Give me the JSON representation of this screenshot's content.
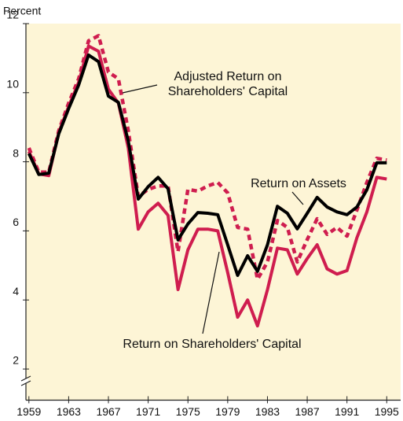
{
  "chart_data": {
    "type": "line",
    "y_label": "Percent",
    "x": [
      1959,
      1960,
      1961,
      1962,
      1963,
      1964,
      1965,
      1966,
      1967,
      1968,
      1969,
      1970,
      1971,
      1972,
      1973,
      1974,
      1975,
      1976,
      1977,
      1978,
      1979,
      1980,
      1981,
      1982,
      1983,
      1984,
      1985,
      1986,
      1987,
      1988,
      1989,
      1990,
      1991,
      1992,
      1993,
      1994,
      1995
    ],
    "series": [
      {
        "name": "Adjusted Return on Shareholders' Capital",
        "color": "#cf1d4f",
        "dash": true,
        "values": [
          8.4,
          7.7,
          7.7,
          8.9,
          9.7,
          10.4,
          11.5,
          11.65,
          10.6,
          10.4,
          8.9,
          7.0,
          7.2,
          7.3,
          7.3,
          5.4,
          7.2,
          7.15,
          7.3,
          7.4,
          7.1,
          6.1,
          6.05,
          4.6,
          5.1,
          6.3,
          6.1,
          5.1,
          5.75,
          6.35,
          5.9,
          6.1,
          5.85,
          6.6,
          7.4,
          8.1,
          8.05
        ]
      },
      {
        "name": "Return on Shareholders' Capital",
        "color": "#cf1d4f",
        "dash": false,
        "values": [
          8.3,
          7.65,
          7.6,
          8.85,
          9.6,
          10.3,
          11.35,
          11.2,
          10.1,
          9.7,
          8.4,
          6.05,
          6.55,
          6.8,
          6.45,
          4.3,
          5.45,
          6.05,
          6.05,
          6.0,
          4.8,
          3.5,
          4.0,
          3.25,
          4.3,
          5.5,
          5.45,
          4.75,
          5.2,
          5.6,
          4.9,
          4.75,
          4.85,
          5.8,
          6.55,
          7.55,
          7.5
        ]
      },
      {
        "name": "Return on Assets",
        "color": "#000000",
        "dash": false,
        "values": [
          8.24,
          7.63,
          7.67,
          8.81,
          9.54,
          10.22,
          11.09,
          10.9,
          9.9,
          9.72,
          8.6,
          6.92,
          7.28,
          7.55,
          7.22,
          5.74,
          6.2,
          6.53,
          6.51,
          6.47,
          5.6,
          4.71,
          5.28,
          4.83,
          5.6,
          6.71,
          6.51,
          6.06,
          6.51,
          6.97,
          6.69,
          6.55,
          6.47,
          6.69,
          7.19,
          7.97,
          7.97
        ]
      }
    ],
    "xlim": [
      1958.7,
      1996.4
    ],
    "xticks": [
      1959,
      1963,
      1967,
      1971,
      1975,
      1979,
      1983,
      1987,
      1991,
      1995
    ],
    "ylim": [
      1.1,
      12
    ],
    "yticks": [
      2,
      4,
      6,
      8,
      10,
      12
    ],
    "background": "#fdf5d6"
  }
}
